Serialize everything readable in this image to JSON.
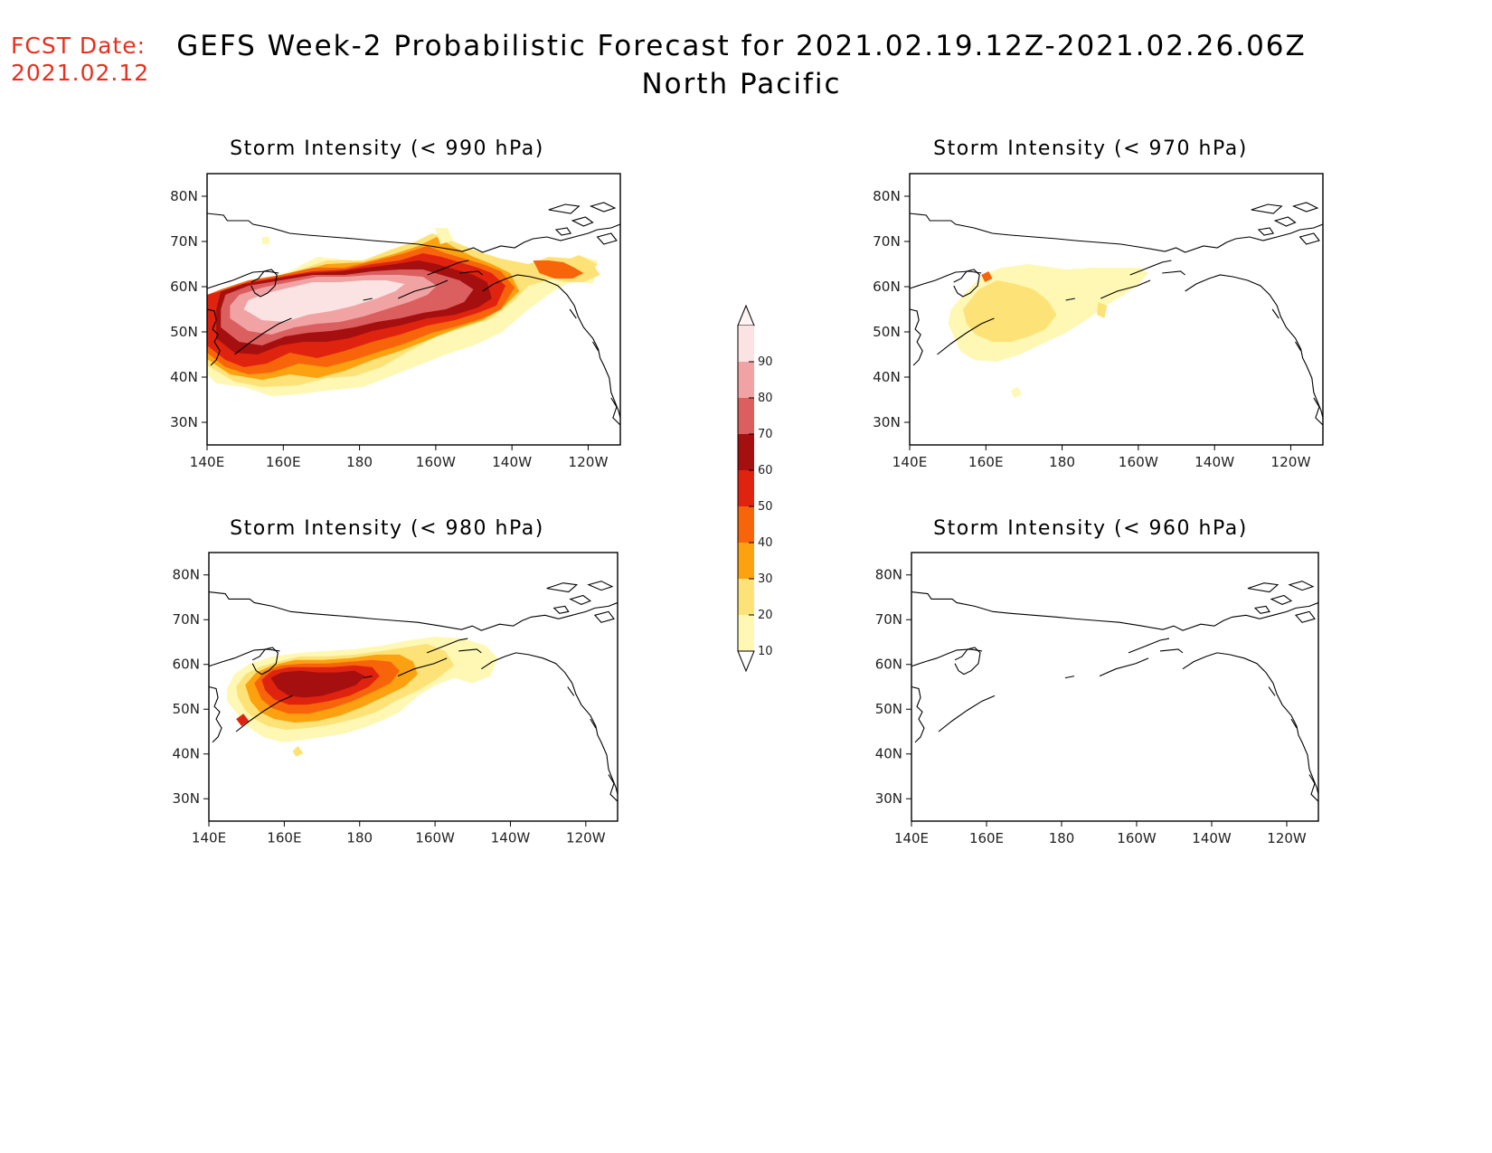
{
  "header": {
    "fcst_label": "FCST Date:",
    "fcst_date": "2021.02.12",
    "title_line1": "GEFS Week-2 Probabilistic Forecast for 2021.02.19.12Z-2021.02.26.06Z",
    "title_line2": "North Pacific"
  },
  "lon_labels": [
    "140E",
    "160E",
    "180",
    "160W",
    "140W",
    "120W"
  ],
  "lat_labels": [
    "80N",
    "70N",
    "60N",
    "50N",
    "40N",
    "30N"
  ],
  "panels": [
    {
      "title": "Storm Intensity (< 990 hPa)",
      "level": "990 hPa",
      "peak_probability": "90+"
    },
    {
      "title": "Storm Intensity (< 970 hPa)",
      "level": "970 hPa",
      "peak_probability": "20-30"
    },
    {
      "title": "Storm Intensity (< 980 hPa)",
      "level": "980 hPa",
      "peak_probability": "60-70"
    },
    {
      "title": "Storm Intensity (< 960 hPa)",
      "level": "960 hPa",
      "peak_probability": "none"
    }
  ],
  "colorbar": {
    "labels": [
      "90",
      "80",
      "70",
      "60",
      "50",
      "40",
      "30",
      "20",
      "10"
    ],
    "colors": [
      "#fce3e3",
      "#f1a3a3",
      "#db5f5f",
      "#a50f0f",
      "#e0230e",
      "#f8640a",
      "#fca10f",
      "#fde277",
      "#fef8b4"
    ]
  }
}
